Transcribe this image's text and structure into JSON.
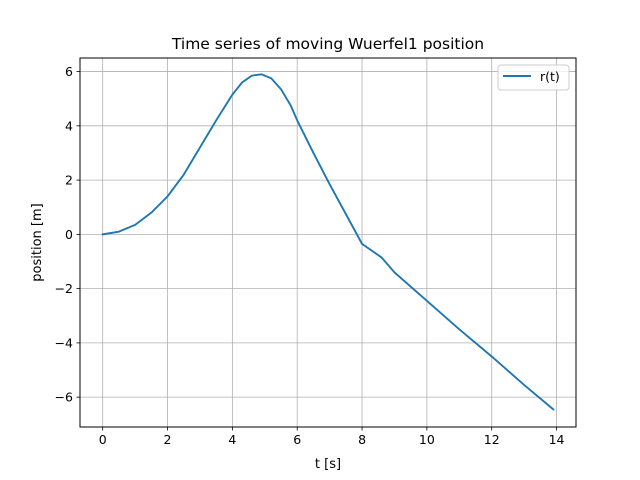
{
  "chart_data": {
    "type": "line",
    "title": "Time series of moving Wuerfel1 position",
    "xlabel": "t [s]",
    "ylabel": "position [m]",
    "xlim": [
      -0.7,
      14.6
    ],
    "ylim": [
      -7.1,
      6.5
    ],
    "xticks": [
      0,
      2,
      4,
      6,
      8,
      10,
      12,
      14
    ],
    "yticks": [
      -6,
      -4,
      -2,
      0,
      2,
      4,
      6
    ],
    "xtick_labels": [
      "0",
      "2",
      "4",
      "6",
      "8",
      "10",
      "12",
      "14"
    ],
    "ytick_labels": [
      "−6",
      "−4",
      "−2",
      "0",
      "2",
      "4",
      "6"
    ],
    "grid": true,
    "legend_position": "top-right",
    "series": [
      {
        "name": "r(t)",
        "color": "#1f77b4",
        "x": [
          0,
          0.5,
          1.0,
          1.5,
          2.0,
          2.5,
          3.0,
          3.5,
          4.0,
          4.3,
          4.6,
          4.9,
          5.2,
          5.5,
          5.8,
          6.0,
          6.5,
          7.0,
          7.5,
          8.0,
          8.6,
          9.0,
          10.0,
          11.0,
          12.0,
          13.0,
          13.9
        ],
        "y": [
          0.0,
          0.1,
          0.35,
          0.8,
          1.4,
          2.2,
          3.2,
          4.2,
          5.15,
          5.6,
          5.85,
          5.9,
          5.75,
          5.35,
          4.75,
          4.2,
          3.0,
          1.85,
          0.75,
          -0.35,
          -0.85,
          -1.4,
          -2.45,
          -3.5,
          -4.5,
          -5.55,
          -6.45
        ]
      }
    ]
  }
}
